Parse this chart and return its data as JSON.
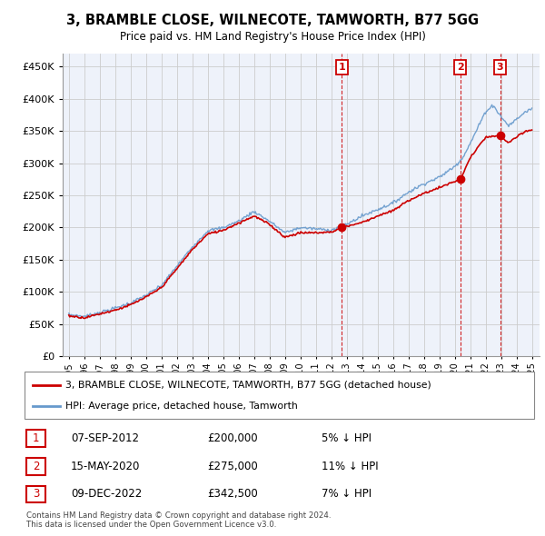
{
  "title": "3, BRAMBLE CLOSE, WILNECOTE, TAMWORTH, B77 5GG",
  "subtitle": "Price paid vs. HM Land Registry's House Price Index (HPI)",
  "house_label": "3, BRAMBLE CLOSE, WILNECOTE, TAMWORTH, B77 5GG (detached house)",
  "hpi_label": "HPI: Average price, detached house, Tamworth",
  "house_color": "#cc0000",
  "hpi_color": "#6699cc",
  "background_color": "#eef2fa",
  "grid_color": "#cccccc",
  "transactions": [
    {
      "num": 1,
      "date": "07-SEP-2012",
      "price": 200000,
      "pct": "5%",
      "x_year": 2012.69
    },
    {
      "num": 2,
      "date": "15-MAY-2020",
      "price": 275000,
      "pct": "11%",
      "x_year": 2020.37
    },
    {
      "num": 3,
      "date": "09-DEC-2022",
      "price": 342500,
      "pct": "7%",
      "x_year": 2022.94
    }
  ],
  "copyright": "Contains HM Land Registry data © Crown copyright and database right 2024.\nThis data is licensed under the Open Government Licence v3.0.",
  "ylim": [
    0,
    470000
  ],
  "yticks": [
    0,
    50000,
    100000,
    150000,
    200000,
    250000,
    300000,
    350000,
    400000,
    450000
  ],
  "xmin": 1994.6,
  "xmax": 2025.5
}
